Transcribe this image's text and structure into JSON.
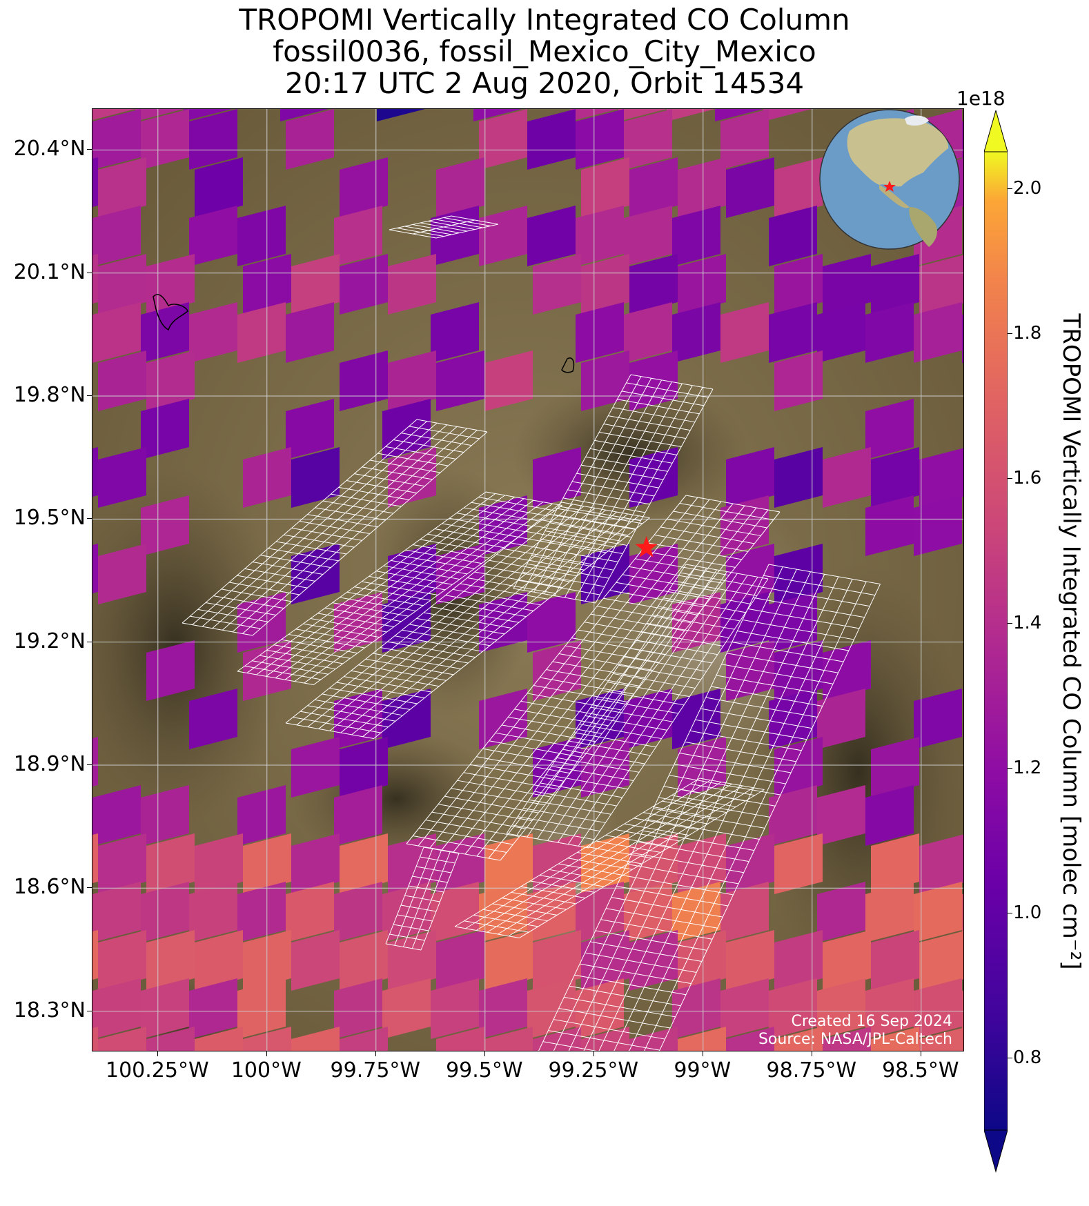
{
  "title": {
    "line1": "TROPOMI Vertically Integrated CO Column",
    "line2": "fossil0036, fossil_Mexico_City_Mexico",
    "line3": "20:17 UTC 2 Aug 2020, Orbit 14534"
  },
  "map": {
    "lon_range": [
      -100.4,
      -98.4
    ],
    "lat_range": [
      18.2,
      20.5
    ],
    "target": {
      "lon": -99.13,
      "lat": 19.43,
      "marker": "red-star"
    },
    "credit": {
      "created": "Created 16 Sep 2024",
      "source": "Source: NASA/JPL-Caltech"
    }
  },
  "axes": {
    "y_ticks": [
      {
        "value": 20.4,
        "label": "20.4°N"
      },
      {
        "value": 20.1,
        "label": "20.1°N"
      },
      {
        "value": 19.8,
        "label": "19.8°N"
      },
      {
        "value": 19.5,
        "label": "19.5°N"
      },
      {
        "value": 19.2,
        "label": "19.2°N"
      },
      {
        "value": 18.9,
        "label": "18.9°N"
      },
      {
        "value": 18.6,
        "label": "18.6°N"
      },
      {
        "value": 18.3,
        "label": "18.3°N"
      }
    ],
    "x_ticks": [
      {
        "value": -100.25,
        "label": "100.25°W"
      },
      {
        "value": -100.0,
        "label": "100°W"
      },
      {
        "value": -99.75,
        "label": "99.75°W"
      },
      {
        "value": -99.5,
        "label": "99.5°W"
      },
      {
        "value": -99.25,
        "label": "99.25°W"
      },
      {
        "value": -99.0,
        "label": "99°W"
      },
      {
        "value": -98.75,
        "label": "98.75°W"
      },
      {
        "value": -98.5,
        "label": "98.5°W"
      }
    ]
  },
  "colorbar": {
    "label": "TROPOMI Vertically Integrated CO Column [molec cm⁻²]",
    "exponent": "1e18",
    "range": [
      0.7,
      2.05
    ],
    "colormap": "plasma",
    "extend": "both",
    "ticks": [
      {
        "value": 0.8,
        "label": "0.8"
      },
      {
        "value": 1.0,
        "label": "1.0"
      },
      {
        "value": 1.2,
        "label": "1.2"
      },
      {
        "value": 1.4,
        "label": "1.4"
      },
      {
        "value": 1.6,
        "label": "1.6"
      },
      {
        "value": 1.8,
        "label": "1.8"
      },
      {
        "value": 2.0,
        "label": "2.0"
      }
    ]
  },
  "colors": {
    "background_land": "#7a6a45",
    "grid": "#cccccc",
    "footprint_outline": "#ffffff",
    "target_marker": "#ff1a1a"
  },
  "inset": {
    "type": "globe",
    "marker": "red-star"
  }
}
